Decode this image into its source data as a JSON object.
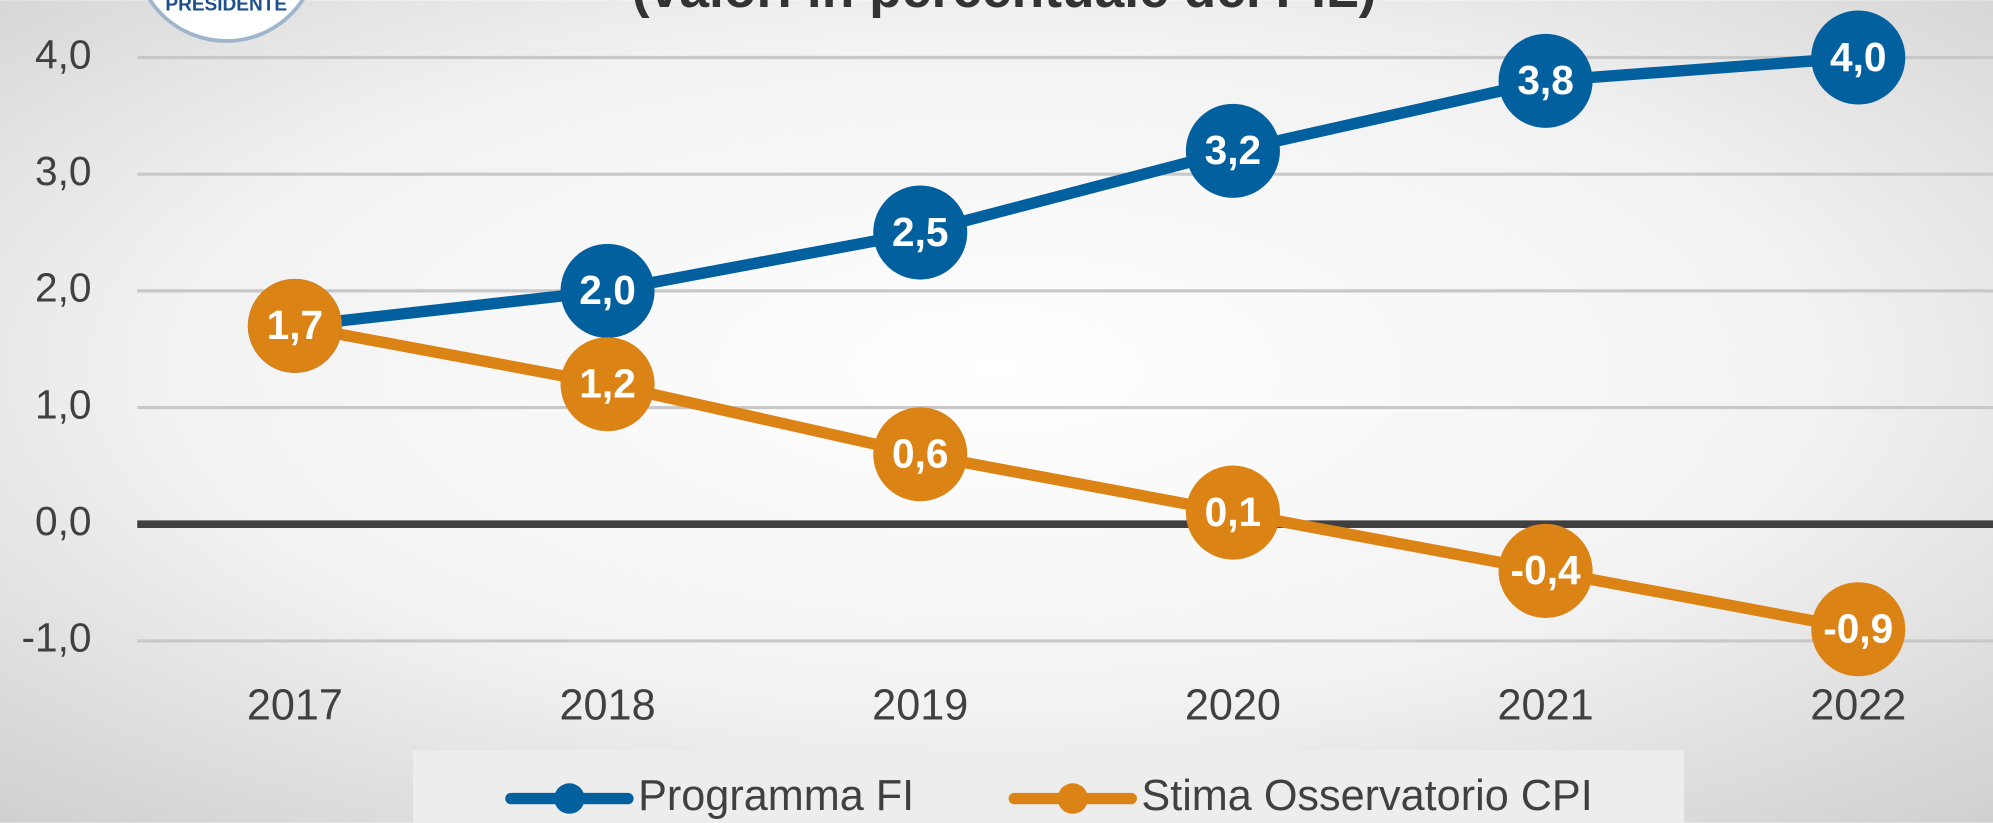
{
  "logo_text": "PRESIDENTE",
  "chart_data": {
    "type": "line",
    "title": "(valori in percentuale del PIL)",
    "categories": [
      "2017",
      "2018",
      "2019",
      "2020",
      "2021",
      "2022"
    ],
    "series": [
      {
        "name": "Programma FI",
        "color": "#03609f",
        "values": [
          1.7,
          2.0,
          2.5,
          3.2,
          3.8,
          4.0
        ],
        "value_labels": [
          "1,7",
          "2,0",
          "2,5",
          "3,2",
          "3,8",
          "4,0"
        ]
      },
      {
        "name": "Stima Osservatorio CPI",
        "color": "#dc8316",
        "values": [
          1.7,
          1.2,
          0.6,
          0.1,
          -0.4,
          -0.9
        ],
        "value_labels": [
          "1,7",
          "1,2",
          "0,6",
          "0,1",
          "-0,4",
          "-0,9"
        ]
      }
    ],
    "ylim": [
      -1,
      4
    ],
    "yticks": [
      {
        "value": -1,
        "label": "-1,0"
      },
      {
        "value": 0,
        "label": "0,0"
      },
      {
        "value": 1,
        "label": "1,0"
      },
      {
        "value": 2,
        "label": "2,0"
      },
      {
        "value": 3,
        "label": "3,0"
      },
      {
        "value": 4,
        "label": "4,0"
      }
    ],
    "grid": true,
    "legend": "bottom"
  }
}
